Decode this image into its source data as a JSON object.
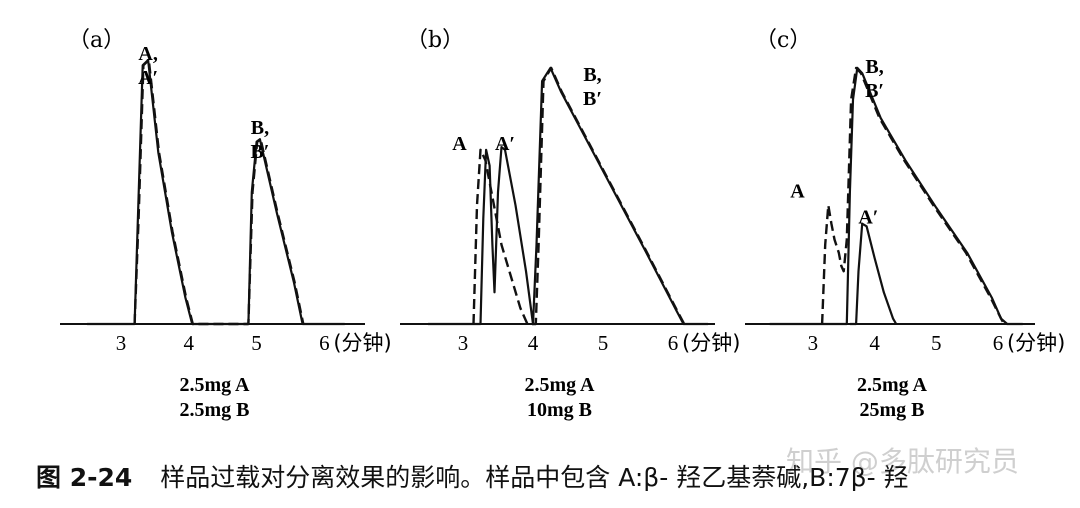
{
  "chart_data": [
    {
      "type": "line",
      "panel_label": "（a）",
      "x_ticks": [
        3,
        4,
        5,
        6
      ],
      "x_unit": "(分钟)",
      "xlim": [
        2.1,
        6.6
      ],
      "samples": [
        "2.5mg A",
        "2.5mg B"
      ],
      "peak_labels": [
        {
          "lines": [
            "A,",
            "A′"
          ],
          "x": 3.4,
          "y": 1.0
        },
        {
          "lines": [
            "B,",
            "B′"
          ],
          "x": 5.05,
          "y": 0.72
        }
      ],
      "series": [
        {
          "style": "solid",
          "points": [
            [
              2.5,
              0
            ],
            [
              3.2,
              0
            ],
            [
              3.25,
              0.4
            ],
            [
              3.32,
              0.98
            ],
            [
              3.4,
              1.0
            ],
            [
              3.55,
              0.65
            ],
            [
              3.75,
              0.35
            ],
            [
              3.95,
              0.1
            ],
            [
              4.05,
              0
            ],
            [
              4.6,
              0
            ],
            [
              4.88,
              0
            ],
            [
              4.93,
              0.5
            ],
            [
              5.0,
              0.69
            ],
            [
              5.05,
              0.7
            ],
            [
              5.3,
              0.42
            ],
            [
              5.55,
              0.16
            ],
            [
              5.68,
              0
            ],
            [
              6.3,
              0
            ]
          ]
        },
        {
          "style": "dashed",
          "points": [
            [
              3.2,
              0
            ],
            [
              3.26,
              0.4
            ],
            [
              3.33,
              0.98
            ],
            [
              3.41,
              1.0
            ],
            [
              3.56,
              0.65
            ],
            [
              3.76,
              0.35
            ],
            [
              3.96,
              0.1
            ],
            [
              4.06,
              0
            ],
            [
              4.88,
              0
            ],
            [
              4.94,
              0.5
            ],
            [
              5.01,
              0.69
            ],
            [
              5.06,
              0.7
            ],
            [
              5.31,
              0.42
            ],
            [
              5.56,
              0.16
            ],
            [
              5.69,
              0
            ]
          ]
        }
      ]
    },
    {
      "type": "line",
      "panel_label": "（b）",
      "x_ticks": [
        3,
        4,
        5,
        6
      ],
      "x_unit": "(分钟)",
      "xlim": [
        2.1,
        6.6
      ],
      "samples": [
        "2.5mg A",
        "10mg B"
      ],
      "peak_labels": [
        {
          "lines": [
            "A"
          ],
          "x": 2.95,
          "y": 0.66
        },
        {
          "lines": [
            "A′"
          ],
          "x": 3.6,
          "y": 0.66
        },
        {
          "lines": [
            "B,",
            "B′"
          ],
          "x": 4.85,
          "y": 0.92
        }
      ],
      "series": [
        {
          "style": "solid",
          "points": [
            [
              2.5,
              0
            ],
            [
              3.25,
              0
            ],
            [
              3.29,
              0.4
            ],
            [
              3.33,
              0.66
            ],
            [
              3.38,
              0.6
            ],
            [
              3.42,
              0.3
            ],
            [
              3.45,
              0.12
            ],
            [
              3.5,
              0.5
            ],
            [
              3.55,
              0.67
            ],
            [
              3.6,
              0.66
            ],
            [
              3.75,
              0.45
            ],
            [
              3.9,
              0.2
            ],
            [
              4.0,
              0
            ],
            [
              4.05,
              0.3
            ],
            [
              4.13,
              0.92
            ],
            [
              4.25,
              0.97
            ],
            [
              4.4,
              0.88
            ],
            [
              5.0,
              0.58
            ],
            [
              5.6,
              0.28
            ],
            [
              6.05,
              0.05
            ],
            [
              6.15,
              0
            ],
            [
              6.5,
              0
            ]
          ]
        },
        {
          "style": "dashed",
          "points": [
            [
              3.15,
              0
            ],
            [
              3.2,
              0.45
            ],
            [
              3.25,
              0.66
            ],
            [
              3.32,
              0.62
            ],
            [
              3.55,
              0.3
            ],
            [
              3.82,
              0.06
            ],
            [
              3.92,
              0
            ],
            [
              4.04,
              0
            ],
            [
              4.08,
              0.3
            ],
            [
              4.15,
              0.92
            ],
            [
              4.26,
              0.97
            ],
            [
              4.41,
              0.88
            ],
            [
              5.01,
              0.58
            ],
            [
              5.61,
              0.28
            ],
            [
              6.06,
              0.05
            ],
            [
              6.16,
              0
            ]
          ]
        }
      ]
    },
    {
      "type": "line",
      "panel_label": "（c）",
      "x_ticks": [
        3,
        4,
        5,
        6
      ],
      "x_unit": "(分钟)",
      "xlim": [
        1.9,
        6.6
      ],
      "samples": [
        "2.5mg A",
        "25mg B"
      ],
      "peak_labels": [
        {
          "lines": [
            "A"
          ],
          "x": 2.75,
          "y": 0.48
        },
        {
          "lines": [
            "A′"
          ],
          "x": 3.9,
          "y": 0.38
        },
        {
          "lines": [
            "B,",
            "B′"
          ],
          "x": 4.0,
          "y": 0.95
        }
      ],
      "series": [
        {
          "style": "solid",
          "points": [
            [
              2.3,
              0
            ],
            [
              3.55,
              0
            ],
            [
              3.6,
              0.5
            ],
            [
              3.65,
              0.85
            ],
            [
              3.72,
              0.97
            ],
            [
              3.8,
              0.95
            ],
            [
              4.1,
              0.78
            ],
            [
              4.5,
              0.62
            ],
            [
              5.0,
              0.44
            ],
            [
              5.5,
              0.27
            ],
            [
              5.9,
              0.1
            ],
            [
              6.05,
              0.02
            ],
            [
              6.15,
              0
            ],
            [
              6.4,
              0
            ]
          ]
        },
        {
          "style": "solid",
          "points": [
            [
              3.6,
              0
            ],
            [
              3.7,
              0
            ],
            [
              3.74,
              0.2
            ],
            [
              3.8,
              0.38
            ],
            [
              3.87,
              0.37
            ],
            [
              4.0,
              0.25
            ],
            [
              4.15,
              0.12
            ],
            [
              4.3,
              0.02
            ],
            [
              4.35,
              0
            ]
          ]
        },
        {
          "style": "dashed",
          "points": [
            [
              3.15,
              0
            ],
            [
              3.2,
              0.3
            ],
            [
              3.25,
              0.45
            ],
            [
              3.3,
              0.38
            ],
            [
              3.35,
              0.32
            ],
            [
              3.42,
              0.27
            ],
            [
              3.46,
              0.22
            ],
            [
              3.5,
              0.2
            ],
            [
              3.55,
              0.32
            ],
            [
              3.62,
              0.85
            ],
            [
              3.7,
              0.97
            ],
            [
              3.78,
              0.95
            ],
            [
              4.08,
              0.78
            ],
            [
              4.48,
              0.62
            ],
            [
              4.98,
              0.44
            ],
            [
              5.48,
              0.27
            ],
            [
              5.88,
              0.1
            ],
            [
              6.05,
              0.02
            ],
            [
              6.1,
              0
            ]
          ]
        }
      ]
    }
  ],
  "caption": {
    "number": "图 2-24",
    "text": "样品过载对分离效果的影响。样品中包含 A:β- 羟乙基萘碱,B:7β- 羟"
  },
  "watermark": "知乎 @多肽研究员"
}
